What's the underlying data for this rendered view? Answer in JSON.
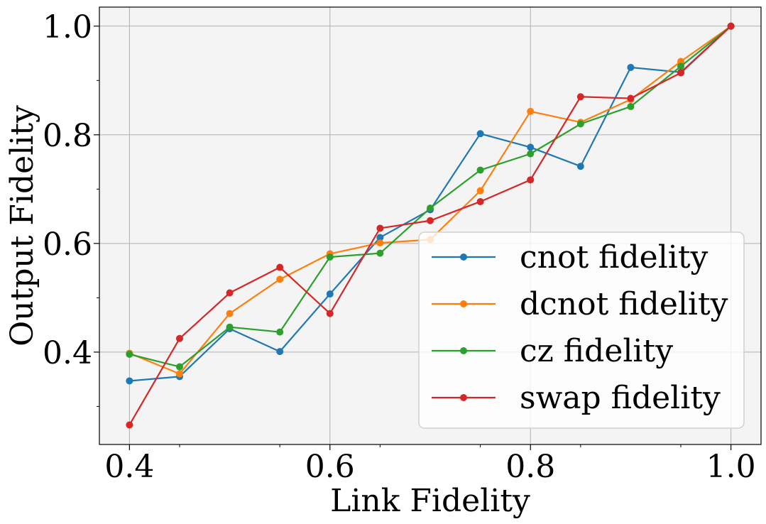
{
  "chart_data": {
    "type": "line",
    "xlabel": "Link Fidelity",
    "ylabel": "Output Fidelity",
    "xlim": [
      0.37,
      1.03
    ],
    "ylim": [
      0.23,
      1.035
    ],
    "xticks": [
      0.4,
      0.6,
      0.8,
      1.0
    ],
    "xtick_labels": [
      "0.4",
      "0.6",
      "0.8",
      "1.0"
    ],
    "yticks": [
      0.4,
      0.6,
      0.8,
      1.0
    ],
    "ytick_labels": [
      "0.4",
      "0.6",
      "0.8",
      "1.0"
    ],
    "grid": true,
    "legend_position": "lower-right",
    "x": [
      0.4,
      0.45,
      0.5,
      0.55,
      0.6,
      0.65,
      0.7,
      0.75,
      0.8,
      0.85,
      0.9,
      0.95,
      1.0
    ],
    "series": [
      {
        "name": "cnot fidelity",
        "color": "#1f77b4",
        "values": [
          0.347,
          0.355,
          0.443,
          0.401,
          0.507,
          0.611,
          0.662,
          0.802,
          0.777,
          0.742,
          0.924,
          0.915,
          1.0
        ]
      },
      {
        "name": "dcnot fidelity",
        "color": "#ff7f0e",
        "values": [
          0.398,
          0.36,
          0.471,
          0.534,
          0.581,
          0.601,
          0.607,
          0.697,
          0.843,
          0.823,
          0.865,
          0.935,
          1.0
        ]
      },
      {
        "name": "cz fidelity",
        "color": "#2ca02c",
        "values": [
          0.396,
          0.373,
          0.446,
          0.437,
          0.575,
          0.582,
          0.665,
          0.735,
          0.765,
          0.82,
          0.852,
          0.926,
          1.0
        ]
      },
      {
        "name": "swap fidelity",
        "color": "#d62728",
        "values": [
          0.266,
          0.425,
          0.509,
          0.556,
          0.471,
          0.628,
          0.642,
          0.677,
          0.717,
          0.87,
          0.867,
          0.914,
          1.0
        ]
      }
    ]
  }
}
